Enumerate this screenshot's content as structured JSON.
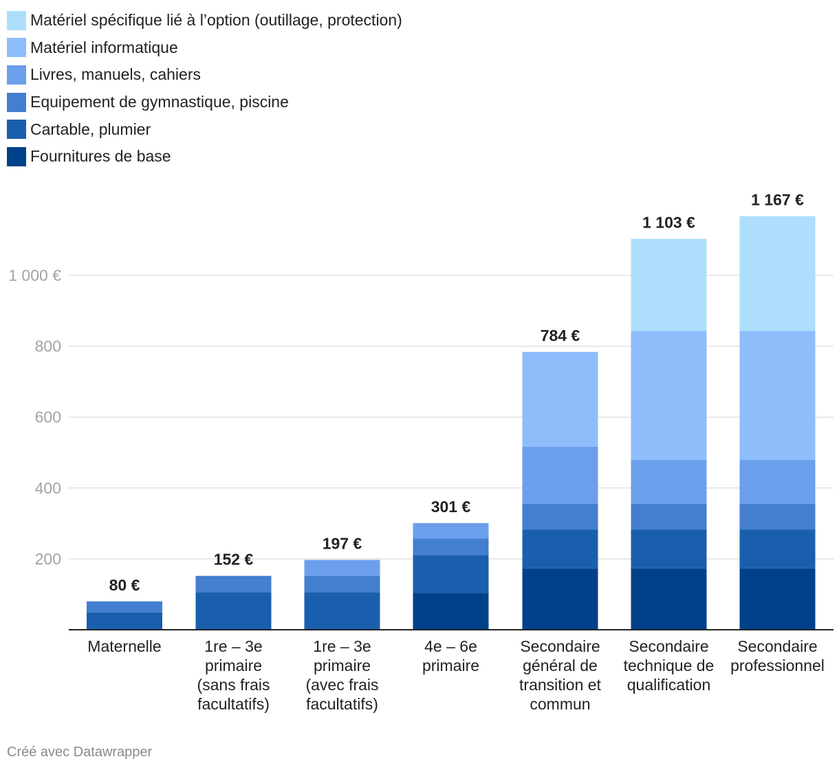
{
  "chart_data": {
    "type": "bar",
    "stacked": true,
    "categories": [
      [
        "Maternelle"
      ],
      [
        "1re – 3e",
        "primaire",
        "(sans frais",
        "facultatifs)"
      ],
      [
        "1re – 3e",
        "primaire",
        "(avec frais",
        "facultatifs)"
      ],
      [
        "4e – 6e",
        "primaire"
      ],
      [
        "Secondaire",
        "général de",
        "transition et",
        "commun"
      ],
      [
        "Secondaire",
        "technique de",
        "qualification"
      ],
      [
        "Secondaire",
        "professionnel"
      ]
    ],
    "series": [
      {
        "name": "Fournitures de base",
        "color": "#00428a",
        "values": [
          0,
          0,
          0,
          104,
          173,
          173,
          173
        ]
      },
      {
        "name": "Cartable, plumier",
        "color": "#1a5fae",
        "values": [
          49,
          106,
          106,
          107,
          110,
          110,
          110
        ]
      },
      {
        "name": "Equipement de gymnastique, piscine",
        "color": "#437ecf",
        "values": [
          31,
          46,
          46,
          46,
          72,
          72,
          72
        ]
      },
      {
        "name": "Livres, manuels, cahiers",
        "color": "#6b9fec",
        "values": [
          0,
          0,
          45,
          44,
          161,
          124,
          124
        ]
      },
      {
        "name": "Matériel informatique",
        "color": "#8ebdfc",
        "values": [
          0,
          0,
          0,
          0,
          268,
          364,
          364
        ]
      },
      {
        "name": "Matériel spécifique lié à l’option (outillage, protection)",
        "color": "#addffd",
        "values": [
          0,
          0,
          0,
          0,
          0,
          260,
          324
        ]
      }
    ],
    "totals": [
      "80 €",
      "152 €",
      "197 €",
      "301 €",
      "784 €",
      "1 103 €",
      "1 167 €"
    ],
    "total_values": [
      80,
      152,
      197,
      301,
      784,
      1103,
      1167
    ],
    "y_ticks": [
      200,
      400,
      600,
      800,
      1000
    ],
    "y_tick_labels": [
      "200",
      "400",
      "600",
      "800",
      "1 000 €"
    ],
    "ylim": [
      0,
      1167
    ],
    "grid": true,
    "legend_position": "top-left"
  },
  "legend_order": [
    5,
    4,
    3,
    2,
    1,
    0
  ],
  "footer": {
    "credit": "Créé avec Datawrapper"
  }
}
